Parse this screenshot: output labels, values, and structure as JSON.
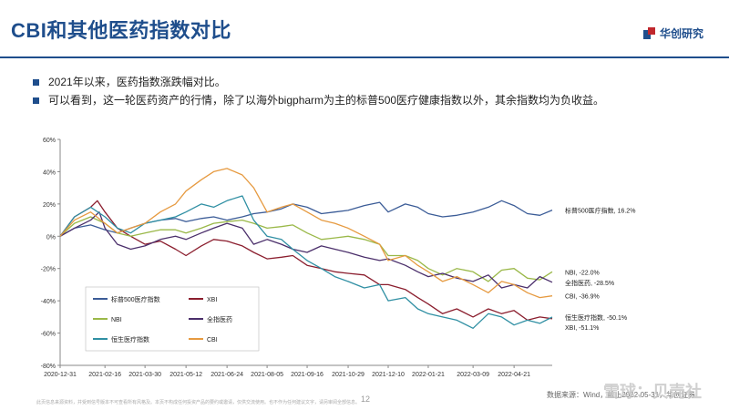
{
  "header": {
    "title": "CBI和其他医药指数对比",
    "brand_name": "华创研究"
  },
  "bullets": [
    "2021年以来，医药指数涨跌幅对比。",
    "可以看到，这一轮医药资产的行情，除了以海外bigpharm为主的标普500医疗健康指数以外，其余指数均为负收益。"
  ],
  "footer": {
    "disclaimer": "此页信息来源资料，并受到信号版本不可查看所有风格及。本页不构成任何投资产品的要约或邀请，仅供交流使用。也不作为任何建议文字，请另审阅全部信息。",
    "page_number": "12",
    "source": "数据来源：Wind，截止2022-05-31，华创证券",
    "watermark": "雪球：贝壳社"
  },
  "chart_data": {
    "type": "line",
    "ylim": [
      -80,
      60
    ],
    "yticks": [
      -80,
      -60,
      -40,
      -20,
      0,
      20,
      40,
      60
    ],
    "ytick_labels": [
      "-80%",
      "-60%",
      "-40%",
      "-20%",
      "0%",
      "20%",
      "40%",
      "60%"
    ],
    "x_ticks": [
      "2020-12-31",
      "2021-02-16",
      "2021-03-30",
      "2021-05-12",
      "2021-06-24",
      "2021-08-05",
      "2021-09-16",
      "2021-10-29",
      "2021-12-10",
      "2022-01-21",
      "2022-03-09",
      "2022-04-21"
    ],
    "x_tick_dates": [
      "2020-12-31",
      "2021-02-16",
      "2021-03-30",
      "2021-05-12",
      "2021-06-24",
      "2021-08-05",
      "2021-09-16",
      "2021-10-29",
      "2021-12-10",
      "2022-01-21",
      "2022-03-09",
      "2022-04-21"
    ],
    "x_end_date": "2022-05-31",
    "legend_position": "bottom-left",
    "series": [
      {
        "name": "标普500医疗指数",
        "color": "#3b5c97",
        "end_label": "标普500医疗指数, 16.2%",
        "dates": [
          "2020-12-31",
          "2021-01-15",
          "2021-02-01",
          "2021-02-16",
          "2021-03-01",
          "2021-03-15",
          "2021-03-30",
          "2021-04-15",
          "2021-05-01",
          "2021-05-12",
          "2021-05-28",
          "2021-06-10",
          "2021-06-24",
          "2021-07-10",
          "2021-07-22",
          "2021-08-05",
          "2021-08-20",
          "2021-09-01",
          "2021-09-16",
          "2021-10-01",
          "2021-10-15",
          "2021-10-29",
          "2021-11-15",
          "2021-12-01",
          "2021-12-10",
          "2021-12-28",
          "2022-01-10",
          "2022-01-21",
          "2022-02-05",
          "2022-02-20",
          "2022-03-09",
          "2022-03-25",
          "2022-04-08",
          "2022-04-21",
          "2022-05-05",
          "2022-05-18",
          "2022-05-31"
        ],
        "values": [
          0,
          5,
          7,
          4,
          2,
          5,
          8,
          10,
          11,
          9,
          11,
          12,
          10,
          12,
          14,
          15,
          17,
          20,
          18,
          14,
          15,
          16,
          19,
          21,
          15,
          20,
          18,
          14,
          12,
          13,
          15,
          18,
          22,
          19,
          14,
          13,
          16.2
        ]
      },
      {
        "name": "XBI",
        "color": "#8b1e2e",
        "end_label": "XBI, -51.1%",
        "dates": [
          "2020-12-31",
          "2021-01-15",
          "2021-02-01",
          "2021-02-08",
          "2021-02-16",
          "2021-03-01",
          "2021-03-15",
          "2021-03-30",
          "2021-04-15",
          "2021-05-01",
          "2021-05-12",
          "2021-05-28",
          "2021-06-10",
          "2021-06-24",
          "2021-07-10",
          "2021-07-22",
          "2021-08-05",
          "2021-08-20",
          "2021-09-01",
          "2021-09-16",
          "2021-10-01",
          "2021-10-15",
          "2021-10-29",
          "2021-11-15",
          "2021-12-01",
          "2021-12-10",
          "2021-12-28",
          "2022-01-10",
          "2022-01-21",
          "2022-02-05",
          "2022-02-20",
          "2022-03-09",
          "2022-03-25",
          "2022-04-08",
          "2022-04-21",
          "2022-05-05",
          "2022-05-18",
          "2022-05-31"
        ],
        "values": [
          0,
          12,
          18,
          22,
          15,
          5,
          0,
          -5,
          -3,
          -8,
          -12,
          -6,
          -2,
          -3,
          -6,
          -10,
          -14,
          -13,
          -12,
          -18,
          -20,
          -22,
          -23,
          -24,
          -30,
          -30,
          -33,
          -38,
          -42,
          -48,
          -45,
          -50,
          -45,
          -48,
          -46,
          -52,
          -50,
          -51.1
        ]
      },
      {
        "name": "NBI",
        "color": "#9ab848",
        "end_label": "NBI, -22.0%",
        "dates": [
          "2020-12-31",
          "2021-01-15",
          "2021-02-01",
          "2021-02-16",
          "2021-03-01",
          "2021-03-15",
          "2021-03-30",
          "2021-04-15",
          "2021-05-01",
          "2021-05-12",
          "2021-05-28",
          "2021-06-10",
          "2021-06-24",
          "2021-07-10",
          "2021-07-22",
          "2021-08-05",
          "2021-08-20",
          "2021-09-01",
          "2021-09-16",
          "2021-10-01",
          "2021-10-15",
          "2021-10-29",
          "2021-11-15",
          "2021-12-01",
          "2021-12-10",
          "2021-12-28",
          "2022-01-10",
          "2022-01-21",
          "2022-02-05",
          "2022-02-20",
          "2022-03-09",
          "2022-03-25",
          "2022-04-08",
          "2022-04-21",
          "2022-05-05",
          "2022-05-18",
          "2022-05-31"
        ],
        "values": [
          0,
          8,
          12,
          8,
          2,
          0,
          2,
          4,
          4,
          2,
          5,
          8,
          9,
          10,
          8,
          5,
          6,
          7,
          2,
          -2,
          -1,
          0,
          -2,
          -5,
          -12,
          -12,
          -15,
          -20,
          -24,
          -20,
          -22,
          -28,
          -21,
          -20,
          -26,
          -27,
          -22.0
        ]
      },
      {
        "name": "全指医药",
        "color": "#4b2f6b",
        "end_label": "全指医药, -28.5%",
        "dates": [
          "2020-12-31",
          "2021-01-15",
          "2021-02-01",
          "2021-02-10",
          "2021-02-16",
          "2021-03-01",
          "2021-03-15",
          "2021-03-30",
          "2021-04-15",
          "2021-05-01",
          "2021-05-12",
          "2021-05-28",
          "2021-06-10",
          "2021-06-24",
          "2021-07-10",
          "2021-07-22",
          "2021-08-05",
          "2021-08-20",
          "2021-09-01",
          "2021-09-16",
          "2021-10-01",
          "2021-10-15",
          "2021-10-29",
          "2021-11-15",
          "2021-12-01",
          "2021-12-10",
          "2021-12-28",
          "2022-01-10",
          "2022-01-21",
          "2022-02-05",
          "2022-02-20",
          "2022-03-09",
          "2022-03-25",
          "2022-04-08",
          "2022-04-21",
          "2022-05-05",
          "2022-05-18",
          "2022-05-31"
        ],
        "values": [
          0,
          5,
          10,
          15,
          5,
          -5,
          -8,
          -6,
          -2,
          0,
          -2,
          2,
          5,
          8,
          5,
          -5,
          -2,
          -5,
          -8,
          -10,
          -6,
          -8,
          -10,
          -13,
          -15,
          -14,
          -18,
          -22,
          -25,
          -23,
          -26,
          -28,
          -24,
          -32,
          -30,
          -32,
          -25,
          -28.5
        ]
      },
      {
        "name": "恒生医疗指数",
        "color": "#2f8fa3",
        "end_label": "恒生医疗指数, -50.1%",
        "dates": [
          "2020-12-31",
          "2021-01-15",
          "2021-02-01",
          "2021-02-16",
          "2021-03-01",
          "2021-03-15",
          "2021-03-30",
          "2021-04-15",
          "2021-05-01",
          "2021-05-12",
          "2021-05-28",
          "2021-06-10",
          "2021-06-24",
          "2021-07-10",
          "2021-07-22",
          "2021-08-05",
          "2021-08-20",
          "2021-09-01",
          "2021-09-16",
          "2021-10-01",
          "2021-10-15",
          "2021-10-29",
          "2021-11-15",
          "2021-12-01",
          "2021-12-10",
          "2021-12-28",
          "2022-01-10",
          "2022-01-21",
          "2022-02-05",
          "2022-02-20",
          "2022-03-09",
          "2022-03-25",
          "2022-04-08",
          "2022-04-21",
          "2022-05-05",
          "2022-05-18",
          "2022-05-31"
        ],
        "values": [
          0,
          12,
          18,
          12,
          5,
          2,
          8,
          10,
          12,
          15,
          20,
          18,
          22,
          25,
          10,
          0,
          -2,
          -8,
          -15,
          -20,
          -25,
          -28,
          -32,
          -30,
          -40,
          -38,
          -45,
          -48,
          -50,
          -52,
          -57,
          -48,
          -50,
          -55,
          -52,
          -54,
          -50.1
        ]
      },
      {
        "name": "CBI",
        "color": "#e69a40",
        "end_label": "CBI, -36.9%",
        "dates": [
          "2020-12-31",
          "2021-01-15",
          "2021-02-01",
          "2021-02-16",
          "2021-03-01",
          "2021-03-15",
          "2021-03-30",
          "2021-04-15",
          "2021-05-01",
          "2021-05-12",
          "2021-05-28",
          "2021-06-10",
          "2021-06-24",
          "2021-07-10",
          "2021-07-22",
          "2021-08-05",
          "2021-08-20",
          "2021-09-01",
          "2021-09-16",
          "2021-10-01",
          "2021-10-15",
          "2021-10-29",
          "2021-11-15",
          "2021-12-01",
          "2021-12-10",
          "2021-12-28",
          "2022-01-10",
          "2022-01-21",
          "2022-02-05",
          "2022-02-20",
          "2022-03-09",
          "2022-03-25",
          "2022-04-08",
          "2022-04-21",
          "2022-05-05",
          "2022-05-18",
          "2022-05-31"
        ],
        "values": [
          0,
          10,
          15,
          8,
          2,
          5,
          8,
          15,
          20,
          28,
          35,
          40,
          42,
          38,
          30,
          15,
          18,
          20,
          15,
          10,
          8,
          5,
          0,
          -5,
          -15,
          -12,
          -18,
          -22,
          -28,
          -25,
          -30,
          -35,
          -28,
          -30,
          -35,
          -38,
          -36.9
        ]
      }
    ]
  }
}
